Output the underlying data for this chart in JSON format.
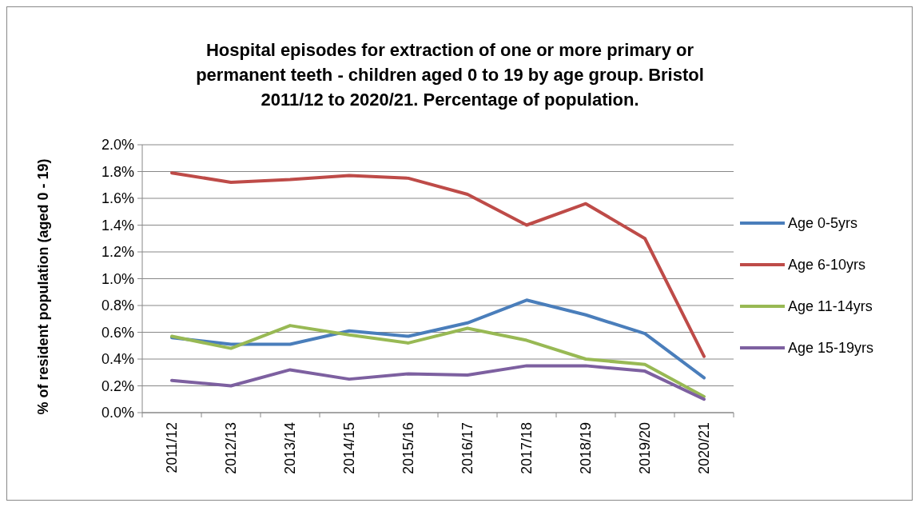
{
  "chart_data": {
    "type": "line",
    "title": "Hospital episodes for extraction of one or more primary or permanent teeth - children aged 0 to 19 by age group. Bristol 2011/12 to 2020/21. Percentage of population.",
    "ylabel": "% of resident population (aged 0 - 19)",
    "categories": [
      "2011/12",
      "2012/13",
      "2013/14",
      "2014/15",
      "2015/16",
      "2016/17",
      "2017/18",
      "2018/19",
      "2019/20",
      "2020/21"
    ],
    "series": [
      {
        "name": "Age 0-5yrs",
        "color": "#4a7ebb",
        "values": [
          0.56,
          0.51,
          0.51,
          0.61,
          0.57,
          0.67,
          0.84,
          0.73,
          0.59,
          0.26
        ]
      },
      {
        "name": "Age 6-10yrs",
        "color": "#be4b48",
        "values": [
          1.79,
          1.72,
          1.74,
          1.77,
          1.75,
          1.63,
          1.4,
          1.56,
          1.3,
          0.42
        ]
      },
      {
        "name": "Age 11-14yrs",
        "color": "#98b954",
        "values": [
          0.57,
          0.48,
          0.65,
          0.58,
          0.52,
          0.63,
          0.54,
          0.4,
          0.36,
          0.12
        ]
      },
      {
        "name": "Age 15-19yrs",
        "color": "#7d60a0",
        "values": [
          0.24,
          0.2,
          0.32,
          0.25,
          0.29,
          0.28,
          0.35,
          0.35,
          0.31,
          0.1
        ]
      }
    ],
    "ylim": [
      0,
      2
    ],
    "yticks": [
      {
        "value": 0,
        "label": "0.0%"
      },
      {
        "value": 0.2,
        "label": "0.2%"
      },
      {
        "value": 0.4,
        "label": "0.4%"
      },
      {
        "value": 0.6,
        "label": "0.6%"
      },
      {
        "value": 0.8,
        "label": "0.8%"
      },
      {
        "value": 1,
        "label": "1.0%"
      },
      {
        "value": 1.2,
        "label": "1.2%"
      },
      {
        "value": 1.4,
        "label": "1.4%"
      },
      {
        "value": 1.6,
        "label": "1.6%"
      },
      {
        "value": 1.8,
        "label": "1.8%"
      },
      {
        "value": 2,
        "label": "2.0%"
      }
    ],
    "grid": "y",
    "legend": "right",
    "marker": "none",
    "line_style": "solid"
  }
}
